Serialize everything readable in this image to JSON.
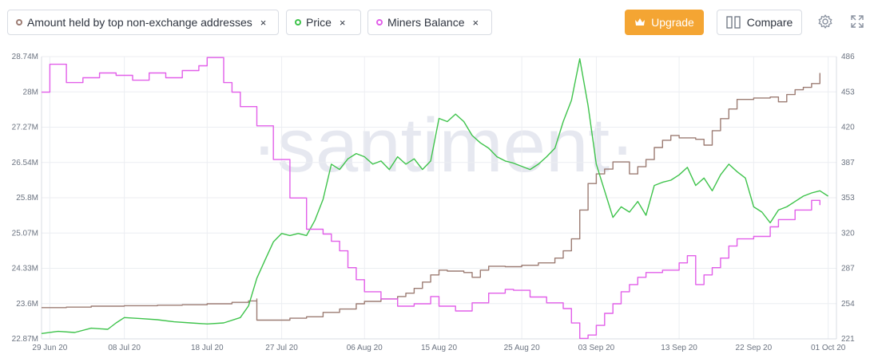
{
  "legend": {
    "items": [
      {
        "label": "Amount held by top non-exchange addresses",
        "color": "#9c7c73",
        "close": "×"
      },
      {
        "label": "Price",
        "color": "#3ec34b",
        "close": "×"
      },
      {
        "label": "Miners Balance",
        "color": "#e25fe9",
        "close": "×"
      }
    ]
  },
  "toolbar": {
    "upgrade_label": "Upgrade",
    "compare_label": "Compare",
    "settings_icon": "gear-icon",
    "fullscreen_icon": "expand-icon"
  },
  "watermark": "·santiment·",
  "chart_data": {
    "type": "line",
    "x_ticks": [
      "29 Jun 20",
      "08 Jul 20",
      "18 Jul 20",
      "27 Jul 20",
      "06 Aug 20",
      "15 Aug 20",
      "25 Aug 20",
      "03 Sep 20",
      "13 Sep 20",
      "22 Sep 20",
      "01 Oct 20"
    ],
    "x_dates": [
      "2020-06-29",
      "2020-07-08",
      "2020-07-18",
      "2020-07-27",
      "2020-08-06",
      "2020-08-15",
      "2020-08-25",
      "2020-09-03",
      "2020-09-13",
      "2020-09-22",
      "2020-10-01"
    ],
    "x_range": [
      "2020-06-28",
      "2020-10-02"
    ],
    "y_left": {
      "ticks": [
        "28.74M",
        "28M",
        "27.27M",
        "26.54M",
        "25.8M",
        "25.07M",
        "24.33M",
        "23.6M",
        "22.87M"
      ],
      "range": [
        22.87,
        28.74
      ],
      "unit": "M"
    },
    "y_right": {
      "ticks": [
        "486",
        "453",
        "420",
        "387",
        "353",
        "320",
        "287",
        "254",
        "221"
      ],
      "range": [
        221,
        486
      ]
    },
    "series": [
      {
        "name": "Amount held by top non-exchange addresses",
        "axis": "left",
        "color": "#9c7c73",
        "step": true,
        "points": [
          [
            "2020-06-28",
            23.52
          ],
          [
            "2020-07-01",
            23.53
          ],
          [
            "2020-07-04",
            23.55
          ],
          [
            "2020-07-08",
            23.56
          ],
          [
            "2020-07-12",
            23.57
          ],
          [
            "2020-07-15",
            23.58
          ],
          [
            "2020-07-18",
            23.6
          ],
          [
            "2020-07-21",
            23.63
          ],
          [
            "2020-07-23",
            23.66
          ],
          [
            "2020-07-24",
            23.7
          ],
          [
            "2020-07-24",
            23.26
          ],
          [
            "2020-07-26",
            23.26
          ],
          [
            "2020-07-28",
            23.3
          ],
          [
            "2020-07-30",
            23.33
          ],
          [
            "2020-08-01",
            23.42
          ],
          [
            "2020-08-03",
            23.49
          ],
          [
            "2020-08-05",
            23.6
          ],
          [
            "2020-08-06",
            23.65
          ],
          [
            "2020-08-08",
            23.7
          ],
          [
            "2020-08-10",
            23.75
          ],
          [
            "2020-08-11",
            23.82
          ],
          [
            "2020-08-12",
            23.92
          ],
          [
            "2020-08-13",
            24.05
          ],
          [
            "2020-08-14",
            24.2
          ],
          [
            "2020-08-15",
            24.3
          ],
          [
            "2020-08-16",
            24.28
          ],
          [
            "2020-08-18",
            24.25
          ],
          [
            "2020-08-19",
            24.15
          ],
          [
            "2020-08-20",
            24.3
          ],
          [
            "2020-08-21",
            24.38
          ],
          [
            "2020-08-23",
            24.37
          ],
          [
            "2020-08-25",
            24.4
          ],
          [
            "2020-08-27",
            24.45
          ],
          [
            "2020-08-29",
            24.55
          ],
          [
            "2020-08-30",
            24.7
          ],
          [
            "2020-08-31",
            24.95
          ],
          [
            "2020-09-01",
            25.25
          ],
          [
            "2020-09-01",
            25.55
          ],
          [
            "2020-09-02",
            25.8
          ],
          [
            "2020-09-02",
            26.1
          ],
          [
            "2020-09-03",
            26.3
          ],
          [
            "2020-09-04",
            26.4
          ],
          [
            "2020-09-05",
            26.55
          ],
          [
            "2020-09-07",
            26.3
          ],
          [
            "2020-09-08",
            26.45
          ],
          [
            "2020-09-09",
            26.6
          ],
          [
            "2020-09-10",
            26.85
          ],
          [
            "2020-09-11",
            27.0
          ],
          [
            "2020-09-12",
            27.1
          ],
          [
            "2020-09-13",
            27.05
          ],
          [
            "2020-09-15",
            27.02
          ],
          [
            "2020-09-16",
            26.9
          ],
          [
            "2020-09-17",
            27.2
          ],
          [
            "2020-09-18",
            27.45
          ],
          [
            "2020-09-19",
            27.65
          ],
          [
            "2020-09-20",
            27.85
          ],
          [
            "2020-09-22",
            27.88
          ],
          [
            "2020-09-24",
            27.9
          ],
          [
            "2020-09-25",
            27.8
          ],
          [
            "2020-09-26",
            27.95
          ],
          [
            "2020-09-27",
            28.05
          ],
          [
            "2020-09-28",
            28.1
          ],
          [
            "2020-09-29",
            28.18
          ],
          [
            "2020-09-30",
            28.4
          ]
        ]
      },
      {
        "name": "Price",
        "axis": "right",
        "color": "#3ec34b",
        "step": false,
        "points": [
          [
            "2020-06-28",
            226
          ],
          [
            "2020-06-30",
            228
          ],
          [
            "2020-07-02",
            227
          ],
          [
            "2020-07-04",
            231
          ],
          [
            "2020-07-06",
            230
          ],
          [
            "2020-07-07",
            236
          ],
          [
            "2020-07-08",
            241
          ],
          [
            "2020-07-10",
            240
          ],
          [
            "2020-07-12",
            239
          ],
          [
            "2020-07-14",
            237
          ],
          [
            "2020-07-16",
            236
          ],
          [
            "2020-07-18",
            235
          ],
          [
            "2020-07-20",
            236
          ],
          [
            "2020-07-22",
            241
          ],
          [
            "2020-07-23",
            252
          ],
          [
            "2020-07-24",
            278
          ],
          [
            "2020-07-25",
            295
          ],
          [
            "2020-07-26",
            312
          ],
          [
            "2020-07-27",
            320
          ],
          [
            "2020-07-28",
            318
          ],
          [
            "2020-07-29",
            320
          ],
          [
            "2020-07-30",
            318
          ],
          [
            "2020-07-31",
            332
          ],
          [
            "2020-08-01",
            352
          ],
          [
            "2020-08-02",
            385
          ],
          [
            "2020-08-03",
            380
          ],
          [
            "2020-08-04",
            390
          ],
          [
            "2020-08-05",
            395
          ],
          [
            "2020-08-06",
            392
          ],
          [
            "2020-08-07",
            385
          ],
          [
            "2020-08-08",
            388
          ],
          [
            "2020-08-09",
            380
          ],
          [
            "2020-08-10",
            392
          ],
          [
            "2020-08-11",
            385
          ],
          [
            "2020-08-12",
            390
          ],
          [
            "2020-08-13",
            380
          ],
          [
            "2020-08-14",
            388
          ],
          [
            "2020-08-15",
            428
          ],
          [
            "2020-08-16",
            425
          ],
          [
            "2020-08-17",
            432
          ],
          [
            "2020-08-18",
            425
          ],
          [
            "2020-08-19",
            412
          ],
          [
            "2020-08-20",
            405
          ],
          [
            "2020-08-21",
            400
          ],
          [
            "2020-08-22",
            392
          ],
          [
            "2020-08-23",
            388
          ],
          [
            "2020-08-24",
            386
          ],
          [
            "2020-08-25",
            383
          ],
          [
            "2020-08-26",
            380
          ],
          [
            "2020-08-27",
            385
          ],
          [
            "2020-08-28",
            392
          ],
          [
            "2020-08-29",
            400
          ],
          [
            "2020-08-30",
            425
          ],
          [
            "2020-08-31",
            445
          ],
          [
            "2020-09-01",
            484
          ],
          [
            "2020-09-02",
            440
          ],
          [
            "2020-09-03",
            385
          ],
          [
            "2020-09-04",
            360
          ],
          [
            "2020-09-05",
            335
          ],
          [
            "2020-09-06",
            345
          ],
          [
            "2020-09-07",
            340
          ],
          [
            "2020-09-08",
            350
          ],
          [
            "2020-09-09",
            337
          ],
          [
            "2020-09-10",
            365
          ],
          [
            "2020-09-11",
            368
          ],
          [
            "2020-09-12",
            370
          ],
          [
            "2020-09-13",
            375
          ],
          [
            "2020-09-14",
            382
          ],
          [
            "2020-09-15",
            365
          ],
          [
            "2020-09-16",
            372
          ],
          [
            "2020-09-17",
            360
          ],
          [
            "2020-09-18",
            375
          ],
          [
            "2020-09-19",
            385
          ],
          [
            "2020-09-20",
            378
          ],
          [
            "2020-09-21",
            372
          ],
          [
            "2020-09-22",
            345
          ],
          [
            "2020-09-23",
            340
          ],
          [
            "2020-09-24",
            330
          ],
          [
            "2020-09-25",
            342
          ],
          [
            "2020-09-26",
            345
          ],
          [
            "2020-09-27",
            350
          ],
          [
            "2020-09-28",
            355
          ],
          [
            "2020-09-29",
            358
          ],
          [
            "2020-09-30",
            360
          ],
          [
            "2020-10-01",
            355
          ]
        ]
      },
      {
        "name": "Miners Balance",
        "axis": "left",
        "color": "#e25fe9",
        "step": true,
        "points": [
          [
            "2020-06-28",
            28.0
          ],
          [
            "2020-06-29",
            28.58
          ],
          [
            "2020-07-01",
            28.2
          ],
          [
            "2020-07-03",
            28.3
          ],
          [
            "2020-07-05",
            28.4
          ],
          [
            "2020-07-07",
            28.35
          ],
          [
            "2020-07-09",
            28.25
          ],
          [
            "2020-07-11",
            28.4
          ],
          [
            "2020-07-13",
            28.3
          ],
          [
            "2020-07-15",
            28.45
          ],
          [
            "2020-07-17",
            28.55
          ],
          [
            "2020-07-18",
            28.72
          ],
          [
            "2020-07-20",
            28.2
          ],
          [
            "2020-07-21",
            28.0
          ],
          [
            "2020-07-22",
            27.7
          ],
          [
            "2020-07-24",
            27.3
          ],
          [
            "2020-07-26",
            26.6
          ],
          [
            "2020-07-28",
            25.8
          ],
          [
            "2020-07-30",
            25.15
          ],
          [
            "2020-08-01",
            25.05
          ],
          [
            "2020-08-02",
            24.9
          ],
          [
            "2020-08-03",
            24.7
          ],
          [
            "2020-08-04",
            24.35
          ],
          [
            "2020-08-05",
            24.1
          ],
          [
            "2020-08-06",
            23.85
          ],
          [
            "2020-08-08",
            23.7
          ],
          [
            "2020-08-10",
            23.55
          ],
          [
            "2020-08-12",
            23.6
          ],
          [
            "2020-08-14",
            23.75
          ],
          [
            "2020-08-15",
            23.55
          ],
          [
            "2020-08-17",
            23.45
          ],
          [
            "2020-08-19",
            23.62
          ],
          [
            "2020-08-21",
            23.82
          ],
          [
            "2020-08-23",
            23.9
          ],
          [
            "2020-08-24",
            23.88
          ],
          [
            "2020-08-26",
            23.74
          ],
          [
            "2020-08-28",
            23.62
          ],
          [
            "2020-08-30",
            23.5
          ],
          [
            "2020-08-31",
            23.2
          ],
          [
            "2020-09-01",
            22.88
          ],
          [
            "2020-09-02",
            22.95
          ],
          [
            "2020-09-03",
            23.15
          ],
          [
            "2020-09-04",
            23.4
          ],
          [
            "2020-09-05",
            23.6
          ],
          [
            "2020-09-06",
            23.85
          ],
          [
            "2020-09-07",
            24.0
          ],
          [
            "2020-09-08",
            24.15
          ],
          [
            "2020-09-09",
            24.25
          ],
          [
            "2020-09-11",
            24.3
          ],
          [
            "2020-09-13",
            24.45
          ],
          [
            "2020-09-14",
            24.6
          ],
          [
            "2020-09-15",
            24.0
          ],
          [
            "2020-09-16",
            24.2
          ],
          [
            "2020-09-17",
            24.35
          ],
          [
            "2020-09-18",
            24.55
          ],
          [
            "2020-09-19",
            24.8
          ],
          [
            "2020-09-20",
            24.95
          ],
          [
            "2020-09-22",
            25.0
          ],
          [
            "2020-09-24",
            25.2
          ],
          [
            "2020-09-25",
            25.35
          ],
          [
            "2020-09-27",
            25.55
          ],
          [
            "2020-09-29",
            25.75
          ],
          [
            "2020-09-30",
            25.65
          ]
        ]
      }
    ]
  }
}
